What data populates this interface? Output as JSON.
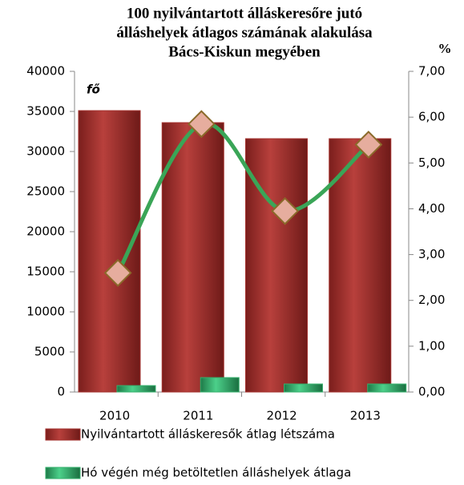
{
  "chart_data": {
    "type": "bar",
    "title": [
      "100 nyilvántartott álláskeresőre jutó",
      "álláshelyek átlagos számának alakulása",
      "Bács-Kiskun megyében"
    ],
    "y_label": "fő",
    "y2_label": "%",
    "categories": [
      "2010",
      "2011",
      "2012",
      "2013"
    ],
    "series": [
      {
        "name": "Nyilvántartott álláskeresők átlag létszáma",
        "color": "#a3302d",
        "values": [
          35100,
          33600,
          31600,
          31600
        ]
      },
      {
        "name": "Hó végén még betöltetlen álláshelyek átlaga",
        "color": "#35b06c",
        "values": [
          800,
          1800,
          1000,
          1000
        ]
      },
      {
        "type": "line",
        "axis": "y2",
        "color": "#3aa557",
        "values": [
          2.6,
          5.85,
          3.95,
          5.4
        ]
      }
    ],
    "ylim": [
      0,
      40000
    ],
    "yticks": [
      0,
      5000,
      10000,
      15000,
      20000,
      25000,
      30000,
      35000,
      40000
    ],
    "y2lim": [
      0,
      7
    ],
    "y2ticks": [
      {
        "value": 0,
        "label": "0,00"
      },
      {
        "value": 1,
        "label": "1,00"
      },
      {
        "value": 2,
        "label": "2,00"
      },
      {
        "value": 3,
        "label": "3,00"
      },
      {
        "value": 4,
        "label": "4,00"
      },
      {
        "value": 5,
        "label": "5,00"
      },
      {
        "value": 6,
        "label": "6,00"
      },
      {
        "value": 7,
        "label": "7,00"
      }
    ]
  }
}
